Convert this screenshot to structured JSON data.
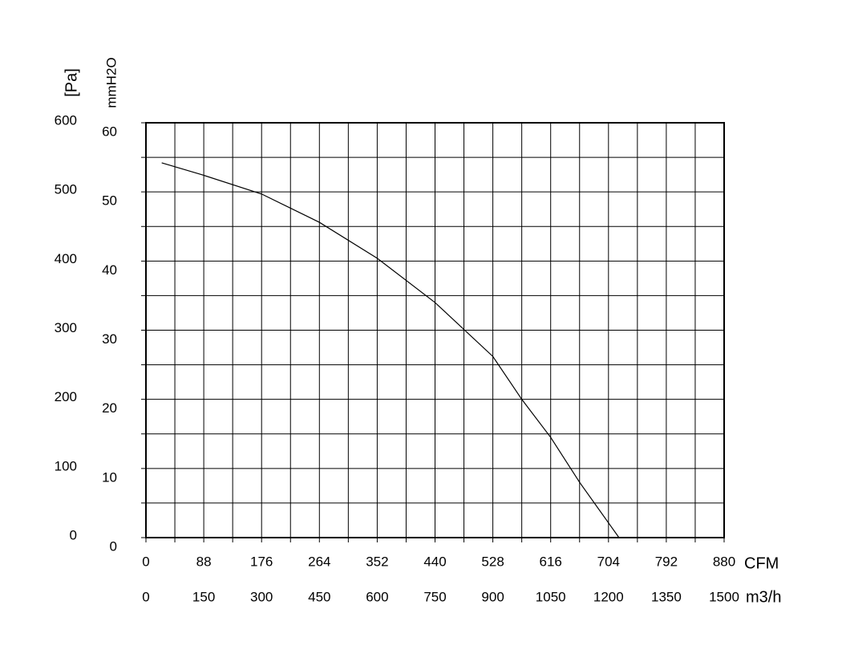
{
  "chart_data": {
    "type": "line",
    "x": [
      24,
      88,
      176,
      264,
      352,
      440,
      528,
      572,
      616,
      660,
      720
    ],
    "series": [
      {
        "color": "#000000",
        "values": [
          542,
          524,
          497,
          456,
          404,
          340,
          262,
          200,
          145,
          80,
          0
        ]
      }
    ],
    "xlim": [
      0,
      880
    ],
    "xticks": [
      0,
      88,
      176,
      264,
      352,
      440,
      528,
      616,
      704,
      792,
      880
    ],
    "x_label": "CFM",
    "x2lim": [
      0,
      1500
    ],
    "x2ticks": [
      0,
      150,
      300,
      450,
      600,
      750,
      900,
      1050,
      1200,
      1350,
      1500
    ],
    "x2_label": "m3/h",
    "ylim": [
      0,
      600
    ],
    "yticks": [
      0,
      100,
      200,
      300,
      400,
      500,
      600
    ],
    "y_label": "[Pa]",
    "y2lim": [
      0,
      60
    ],
    "y2ticks": [
      0,
      10,
      20,
      30,
      40,
      50,
      60
    ],
    "y2_label": "mmH2O",
    "grid": true
  }
}
